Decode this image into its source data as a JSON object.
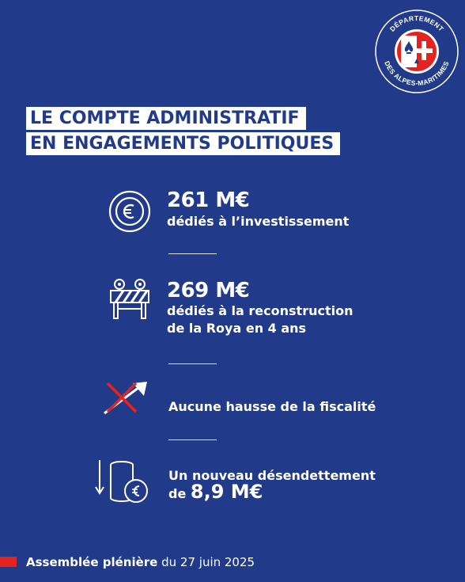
{
  "logo": {
    "text_top": "DÉPARTEMENT",
    "text_bottom": "DES ALPES-MARITIMES"
  },
  "title": {
    "line1": "LE COMPTE ADMINISTRATIF",
    "line2": "EN ENGAGEMENTS POLITIQUES"
  },
  "items": [
    {
      "value": "261 M€",
      "description": [
        "dédiés à l’investissement"
      ],
      "icon": "euro-coin-icon"
    },
    {
      "value": "269 M€",
      "description": [
        "dédiés à la reconstruction",
        "de la Roya en 4 ans"
      ],
      "icon": "road-barrier-icon"
    },
    {
      "description": [
        "Aucune hausse de la fiscalité"
      ],
      "icon": "crossed-rising-arrow-icon"
    },
    {
      "description_prefix": "Un nouveau désendettement",
      "description_inline_prefix": "de",
      "value": "8,9 M€",
      "icon": "coin-stack-down-icon"
    }
  ],
  "footer": {
    "bold": "Assemblée plénière",
    "rest": "du 27 juin 2025"
  },
  "colors": {
    "background": "#213a8a",
    "accent_red": "#e4221f",
    "white": "#ffffff"
  }
}
